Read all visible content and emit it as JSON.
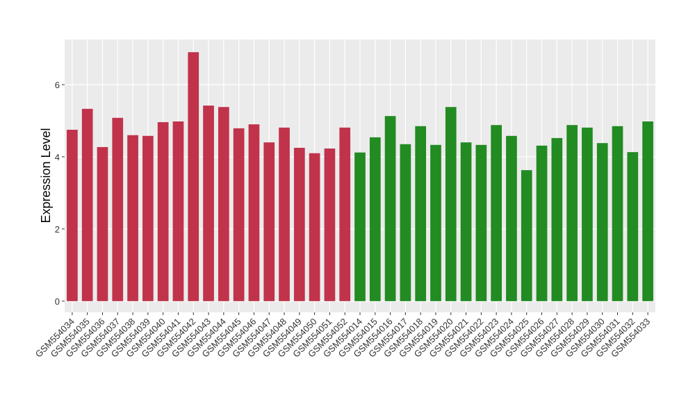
{
  "chart_data": {
    "type": "bar",
    "y_label": "Expression Level",
    "categories": [
      "GSM554034",
      "GSM554035",
      "GSM554036",
      "GSM554037",
      "GSM554038",
      "GSM554039",
      "GSM554040",
      "GSM554041",
      "GSM554042",
      "GSM554043",
      "GSM554044",
      "GSM554045",
      "GSM554046",
      "GSM554047",
      "GSM554048",
      "GSM554049",
      "GSM554050",
      "GSM554051",
      "GSM554052",
      "GSM554014",
      "GSM554015",
      "GSM554016",
      "GSM554017",
      "GSM554018",
      "GSM554019",
      "GSM554020",
      "GSM554021",
      "GSM554022",
      "GSM554023",
      "GSM554024",
      "GSM554025",
      "GSM554026",
      "GSM554027",
      "GSM554028",
      "GSM554029",
      "GSM554030",
      "GSM554031",
      "GSM554032",
      "GSM554033"
    ],
    "values": [
      4.75,
      5.33,
      4.27,
      5.08,
      4.6,
      4.58,
      4.96,
      4.98,
      6.9,
      5.42,
      5.38,
      4.79,
      4.9,
      4.4,
      4.81,
      4.25,
      4.1,
      4.23,
      4.81,
      4.12,
      4.54,
      5.13,
      4.35,
      4.85,
      4.33,
      5.38,
      4.4,
      4.33,
      4.88,
      4.58,
      3.63,
      4.31,
      4.52,
      4.88,
      4.81,
      4.38,
      4.85,
      4.13,
      4.98
    ],
    "colors": [
      "#c0334b",
      "#c0334b",
      "#c0334b",
      "#c0334b",
      "#c0334b",
      "#c0334b",
      "#c0334b",
      "#c0334b",
      "#c0334b",
      "#c0334b",
      "#c0334b",
      "#c0334b",
      "#c0334b",
      "#c0334b",
      "#c0334b",
      "#c0334b",
      "#c0334b",
      "#c0334b",
      "#c0334b",
      "#228b22",
      "#228b22",
      "#228b22",
      "#228b22",
      "#228b22",
      "#228b22",
      "#228b22",
      "#228b22",
      "#228b22",
      "#228b22",
      "#228b22",
      "#228b22",
      "#228b22",
      "#228b22",
      "#228b22",
      "#228b22",
      "#228b22",
      "#228b22",
      "#228b22",
      "#228b22"
    ],
    "ylim": [
      -0.31,
      7.25
    ],
    "yticks": [
      0,
      2,
      4,
      6
    ],
    "grid": true
  }
}
